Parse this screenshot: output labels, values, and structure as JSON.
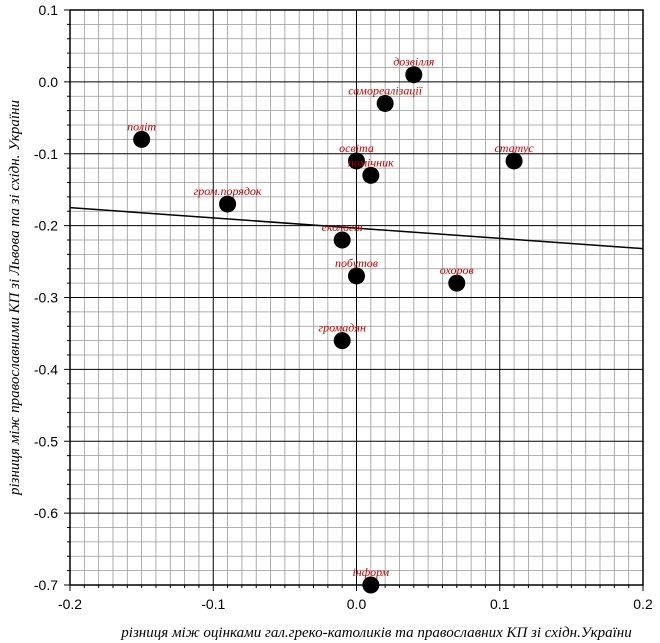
{
  "chart_data": {
    "type": "scatter",
    "xlabel": "різниця між оцінками гал.греко-католиків та православних КП зі східн.України",
    "ylabel": "різниця між православними КП зі Львова та зі східн. України",
    "xlim": [
      -0.2,
      0.2
    ],
    "ylim": [
      -0.7,
      0.1
    ],
    "x_ticks": [
      "-0.2",
      "-0.1",
      "0.0",
      "0.1",
      "0.2"
    ],
    "y_ticks": [
      "0.1",
      "0.0",
      "-0.1",
      "-0.2",
      "-0.3",
      "-0.4",
      "-0.5",
      "-0.6",
      "-0.7"
    ],
    "grid": true,
    "points": [
      {
        "label": "дозвілля",
        "x": 0.04,
        "y": 0.01
      },
      {
        "label": "самореалізації",
        "x": 0.02,
        "y": -0.03
      },
      {
        "label": "політ",
        "x": -0.15,
        "y": -0.08
      },
      {
        "label": "освіта",
        "x": 0.0,
        "y": -0.11
      },
      {
        "label": "статус",
        "x": 0.11,
        "y": -0.11
      },
      {
        "label": "помічник",
        "x": 0.01,
        "y": -0.13
      },
      {
        "label": "гром.порядок",
        "x": -0.09,
        "y": -0.17
      },
      {
        "label": "екологія",
        "x": -0.01,
        "y": -0.22
      },
      {
        "label": "побутов",
        "x": 0.0,
        "y": -0.27
      },
      {
        "label": "охоров",
        "x": 0.07,
        "y": -0.28
      },
      {
        "label": "громадян",
        "x": -0.01,
        "y": -0.36
      },
      {
        "label": "інформ",
        "x": 0.01,
        "y": -0.7
      }
    ],
    "trendline": {
      "x": [
        -0.2,
        0.2
      ],
      "y": [
        -0.175,
        -0.232
      ]
    },
    "colors": {
      "point": "#000000",
      "point_label": "#c00000",
      "grid": "#999999",
      "line": "#000000"
    }
  }
}
